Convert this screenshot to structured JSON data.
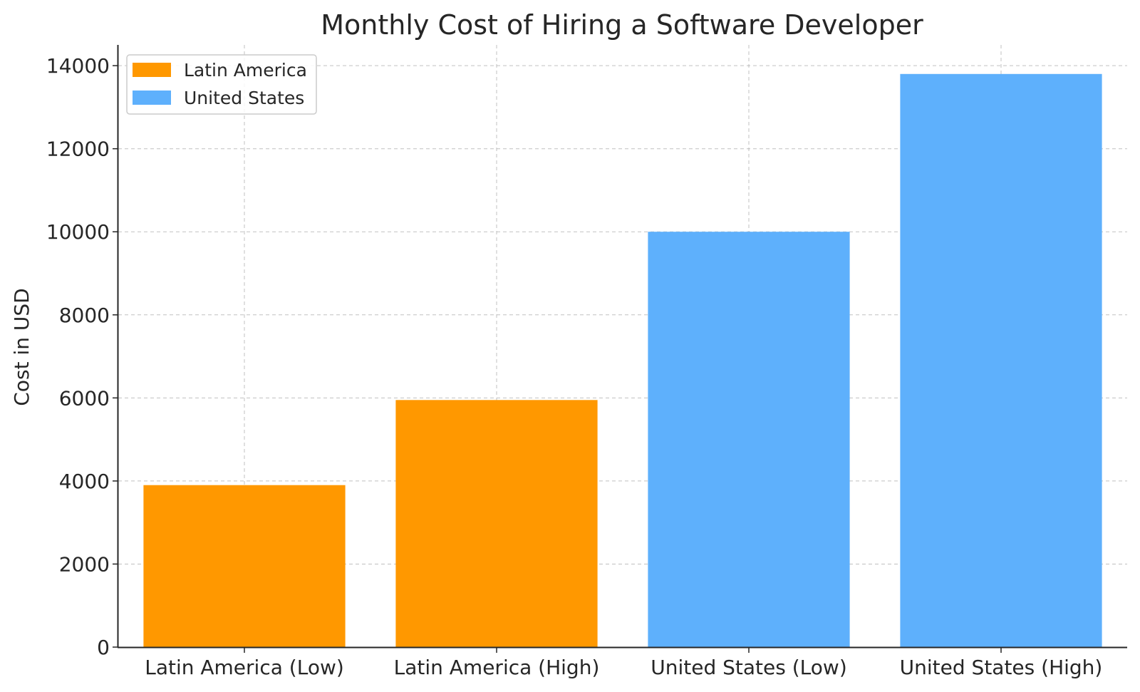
{
  "chart_data": {
    "type": "bar",
    "title": "Monthly Cost of Hiring a Software Developer",
    "xlabel": "",
    "ylabel": "Cost in USD",
    "categories": [
      "Latin America (Low)",
      "Latin America (High)",
      "United States (Low)",
      "United States (High)"
    ],
    "values": [
      3900,
      5950,
      10000,
      13800
    ],
    "bar_series": [
      "Latin America",
      "Latin America",
      "United States",
      "United States"
    ],
    "series": [
      {
        "name": "Latin America",
        "color": "#ff9800"
      },
      {
        "name": "United States",
        "color": "#5eb0fc"
      }
    ],
    "ylim": [
      0,
      14500
    ],
    "yticks": [
      "0",
      "2000",
      "4000",
      "6000",
      "8000",
      "10000",
      "12000",
      "14000"
    ],
    "grid": true,
    "legend_position": "top-left"
  }
}
